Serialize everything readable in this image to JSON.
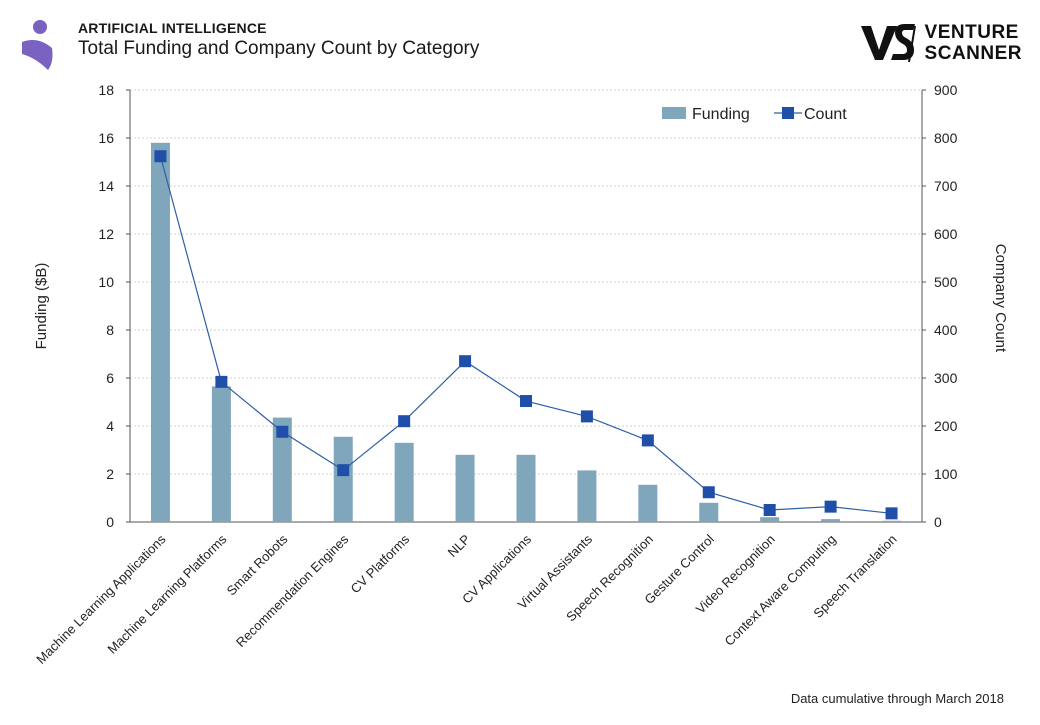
{
  "header": {
    "kicker": "ARTIFICIAL INTELLIGENCE",
    "title": "Total Funding and Company Count by Category"
  },
  "brand": {
    "line1": "VENTURE",
    "line2": "SCANNER"
  },
  "footnote": "Data cumulative through March 2018",
  "colors": {
    "bar": "#7fa6ba",
    "line": "#2c5fa6",
    "marker": "#1f4fa8",
    "grid": "#d0d0d0",
    "logo_purple": "#7a62c0"
  },
  "chart_data": {
    "type": "bar",
    "categories": [
      "Machine Learning Applications",
      "Machine Learning Platforms",
      "Smart Robots",
      "Recommendation Engines",
      "CV Platforms",
      "NLP",
      "CV Applications",
      "Virtual Assistants",
      "Speech Recognition",
      "Gesture Control",
      "Video Recognition",
      "Context Aware Computing",
      "Speech Translation"
    ],
    "series": [
      {
        "name": "Funding",
        "type": "bar",
        "axis": "left",
        "values": [
          15.8,
          5.65,
          4.35,
          3.55,
          3.3,
          2.8,
          2.8,
          2.15,
          1.55,
          0.8,
          0.2,
          0.12,
          0.05
        ]
      },
      {
        "name": "Count",
        "type": "line",
        "axis": "right",
        "values": [
          762,
          292,
          188,
          108,
          210,
          335,
          252,
          220,
          170,
          62,
          25,
          32,
          18
        ]
      }
    ],
    "ylabel": "Funding ($B)",
    "y2label": "Company Count",
    "ylim": [
      0,
      18
    ],
    "y2lim": [
      0,
      900
    ],
    "yticks": [
      0,
      2,
      4,
      6,
      8,
      10,
      12,
      14,
      16,
      18
    ],
    "y2ticks": [
      0,
      100,
      200,
      300,
      400,
      500,
      600,
      700,
      800,
      900
    ],
    "grid": true,
    "legend_position": "top-right"
  }
}
